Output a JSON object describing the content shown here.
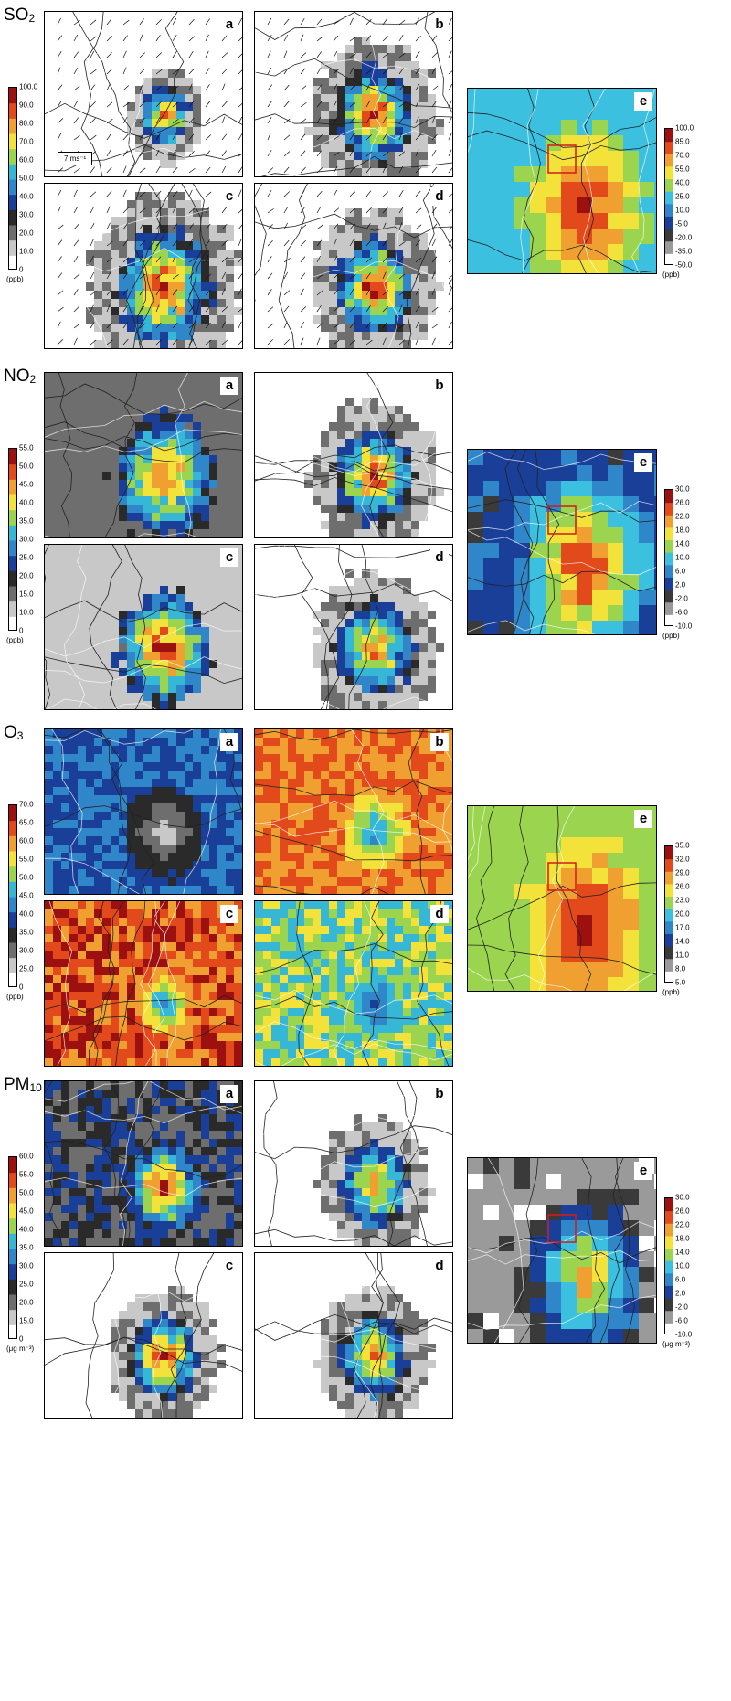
{
  "sections": [
    {
      "id": "so2",
      "title_main": "SO",
      "title_sub": "2",
      "unit": "(ppb)",
      "ticks": [
        "100.0",
        "90.0",
        "80.0",
        "70.0",
        "60.0",
        "50.0",
        "40.0",
        "30.0",
        "20.0",
        "10.0",
        "0"
      ],
      "diff_unit": "(ppb)",
      "diff_ticks": [
        "100.0",
        "85.0",
        "70.0",
        "55.0",
        "40.0",
        "25.0",
        "10.0",
        "-5.0",
        "-20.0",
        "-35.0",
        "-50.0"
      ],
      "panels": [
        "a",
        "b",
        "c",
        "d"
      ],
      "diff_panel": "e",
      "wind_label": "7 ms⁻¹"
    },
    {
      "id": "no2",
      "title_main": "NO",
      "title_sub": "2",
      "unit": "(ppb)",
      "ticks": [
        "55.0",
        "50.0",
        "45.0",
        "40.0",
        "35.0",
        "30.0",
        "25.0",
        "20.0",
        "15.0",
        "10.0",
        "0"
      ],
      "diff_unit": "(ppb)",
      "diff_ticks": [
        "30.0",
        "26.0",
        "22.0",
        "18.0",
        "14.0",
        "10.0",
        "6.0",
        "2.0",
        "-2.0",
        "-6.0",
        "-10.0"
      ],
      "panels": [
        "a",
        "b",
        "c",
        "d"
      ],
      "diff_panel": "e"
    },
    {
      "id": "o3",
      "title_main": "O",
      "title_sub": "3",
      "unit": "(ppb)",
      "ticks": [
        "70.0",
        "65.0",
        "60.0",
        "55.0",
        "50.0",
        "45.0",
        "40.0",
        "35.0",
        "30.0",
        "25.0",
        "0"
      ],
      "diff_unit": "(ppb)",
      "diff_ticks": [
        "35.0",
        "32.0",
        "29.0",
        "26.0",
        "23.0",
        "20.0",
        "17.0",
        "14.0",
        "11.0",
        "8.0",
        "5.0"
      ],
      "panels": [
        "a",
        "b",
        "c",
        "d"
      ],
      "diff_panel": "e"
    },
    {
      "id": "pm10",
      "title_main": "PM",
      "title_sub": "10",
      "unit": "(μg m⁻³)",
      "ticks": [
        "60.0",
        "55.0",
        "50.0",
        "45.0",
        "40.0",
        "35.0",
        "30.0",
        "25.0",
        "20.0",
        "15.0",
        "0"
      ],
      "diff_unit": "(μg m⁻³)",
      "diff_ticks": [
        "30.0",
        "26.0",
        "22.0",
        "18.0",
        "14.0",
        "10.0",
        "6.0",
        "2.0",
        "-2.0",
        "-6.0",
        "-10.0"
      ],
      "panels": [
        "a",
        "b",
        "c",
        "d"
      ],
      "diff_panel": "e"
    }
  ],
  "colors": {
    "conc_scale": [
      "#ffffff",
      "#c8c8c8",
      "#6e6e6e",
      "#2a2a2a",
      "#1a3f99",
      "#2f86c8",
      "#37b7d6",
      "#9bd44f",
      "#f3e23a",
      "#f0a030",
      "#e24a1c",
      "#9c1010"
    ],
    "diff_scale": [
      "#ffffff",
      "#9a9a9a",
      "#3a3a3a",
      "#1a3f99",
      "#2f86c8",
      "#3cc0e0",
      "#9bd44f",
      "#f3e23a",
      "#f0a030",
      "#e24a1c",
      "#9c1010"
    ]
  }
}
